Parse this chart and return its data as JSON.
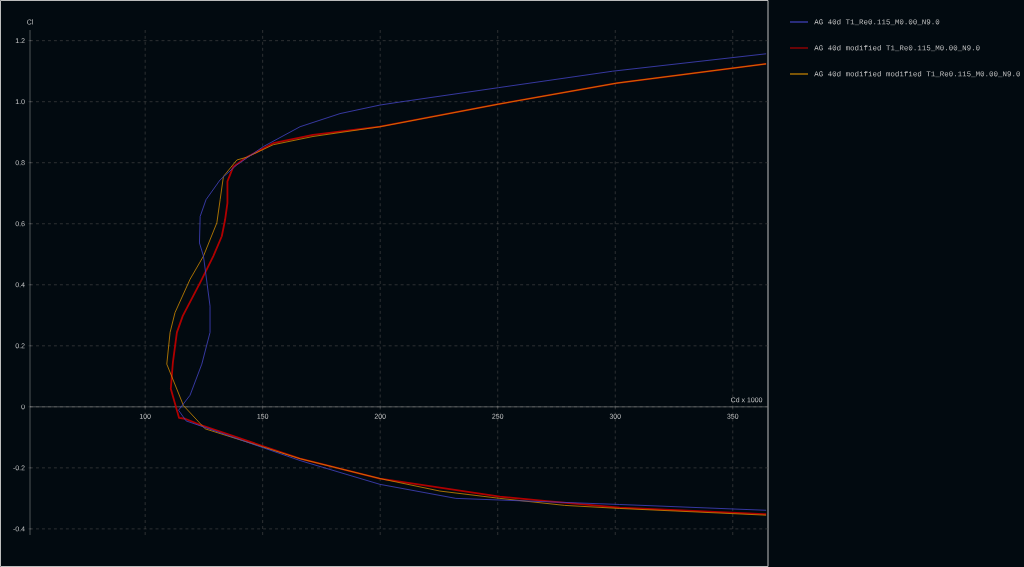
{
  "chart_data": {
    "type": "line",
    "xlabel": "Cd x 1000",
    "ylabel": "Cl",
    "xlim": [
      51,
      365
    ],
    "ylim": [
      -0.42,
      1.235
    ],
    "xticks": [
      100,
      150,
      200,
      250,
      300,
      350
    ],
    "yticks": [
      -0.4,
      -0.2,
      0,
      0.2,
      0.4,
      0.6,
      0.8,
      {
        "value": 1,
        "label": "1.0"
      },
      1.2
    ],
    "grid": true,
    "legend": "right",
    "marker": "none",
    "line_style": "solid",
    "series": [
      {
        "name": "AG 40d T1_Re0.115_M0.00_N9.0",
        "color": "#4444c4",
        "x": [
          364.2,
          301.9,
          232.2,
          199.9,
          165.9,
          117.4,
          114.2,
          119.1,
          124.1,
          127.6,
          127.6,
          124.8,
          123.1,
          123.4,
          125.9,
          131.9,
          139.0,
          150.3,
          165.9,
          182.9,
          199.9,
          208.4,
          250.3,
          298.9,
          364.2
        ],
        "values": [
          -0.339,
          -0.32,
          -0.3,
          -0.254,
          -0.176,
          -0.046,
          -0.011,
          0.038,
          0.14,
          0.244,
          0.33,
          0.494,
          0.537,
          0.624,
          0.679,
          0.744,
          0.793,
          0.853,
          0.918,
          0.961,
          0.989,
          0.999,
          1.046,
          1.1,
          1.157
        ]
      },
      {
        "name": "AG 40d modified T1_Re0.115_M0.00_N9.0",
        "color": "#b00000",
        "x": [
          364.2,
          301.9,
          272.0,
          250.9,
          199.9,
          165.9,
          123.4,
          117.0,
          114.4,
          110.9,
          111.8,
          113.5,
          116.0,
          123.4,
          129.0,
          132.6,
          134.0,
          135.0,
          135.0,
          137.5,
          143.2,
          154.5,
          171.4,
          199.9,
          250.3,
          300.7,
          364.2
        ],
        "values": [
          -0.352,
          -0.33,
          -0.31,
          -0.294,
          -0.235,
          -0.17,
          -0.059,
          -0.039,
          -0.036,
          0.059,
          0.146,
          0.244,
          0.298,
          0.407,
          0.494,
          0.559,
          0.613,
          0.668,
          0.739,
          0.787,
          0.818,
          0.864,
          0.891,
          0.918,
          0.992,
          1.061,
          1.124
        ]
      },
      {
        "name": "AG 40d modified modified T1_Re0.115_M0.00_N9.0",
        "color": "#d08a00",
        "x": [
          364.2,
          301.9,
          278.5,
          250.9,
          225.4,
          199.9,
          165.9,
          125.5,
          116.3,
          109.2,
          110.6,
          112.7,
          119.1,
          124.8,
          130.5,
          131.9,
          133.3,
          139.0,
          143.2,
          154.5,
          171.4,
          199.9,
          250.3,
          300.7,
          364.2
        ],
        "values": [
          -0.355,
          -0.333,
          -0.323,
          -0.3,
          -0.276,
          -0.235,
          -0.17,
          -0.072,
          0.004,
          0.14,
          0.244,
          0.309,
          0.418,
          0.494,
          0.603,
          0.679,
          0.755,
          0.809,
          0.818,
          0.859,
          0.886,
          0.918,
          0.992,
          1.061,
          1.124
        ]
      }
    ]
  }
}
